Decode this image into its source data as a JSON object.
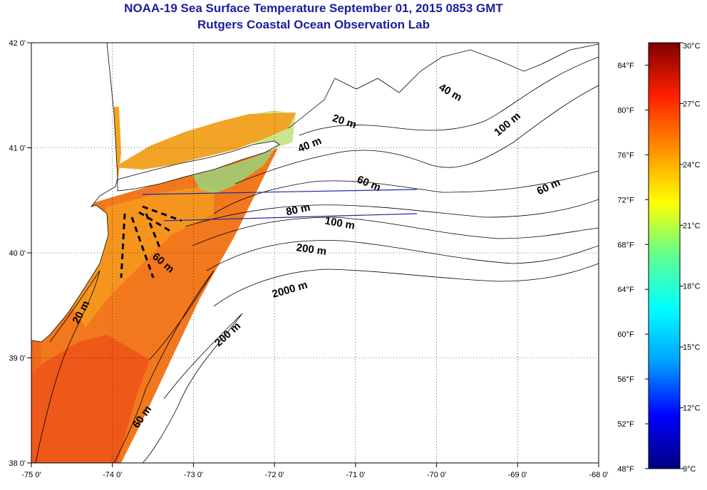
{
  "title": "NOAA-19 Sea Surface Temperature September 01, 2015 0853 GMT",
  "subtitle": "Rutgers Coastal Ocean Observation Lab",
  "map": {
    "lon_range": [
      -75,
      -68
    ],
    "lat_range": [
      38,
      42
    ],
    "lon_ticks": [
      {
        "value": -75,
        "label": "-75 0'"
      },
      {
        "value": -74,
        "label": "-74 0'"
      },
      {
        "value": -73,
        "label": "-73 0'"
      },
      {
        "value": -72,
        "label": "-72 0'"
      },
      {
        "value": -71,
        "label": "-71 0'"
      },
      {
        "value": -70,
        "label": "-70 0'"
      },
      {
        "value": -69,
        "label": "-69 0'"
      },
      {
        "value": -68,
        "label": "-68 0'"
      }
    ],
    "lat_ticks": [
      {
        "value": 38,
        "label": "38 0'"
      },
      {
        "value": 39,
        "label": "39 0'"
      },
      {
        "value": 40,
        "label": "40 0'"
      },
      {
        "value": 41,
        "label": "41 0'"
      },
      {
        "value": 42,
        "label": "42 0'"
      }
    ],
    "grid": "dotted",
    "depth_contours": [
      {
        "label": "20 m",
        "lon": -74.35,
        "lat": 39.42,
        "rotate": -62
      },
      {
        "label": "60 m",
        "lon": -73.6,
        "lat": 38.42,
        "rotate": -55
      },
      {
        "label": "60 m",
        "lon": -73.4,
        "lat": 39.88,
        "rotate": 40
      },
      {
        "label": "200 m",
        "lon": -72.55,
        "lat": 39.2,
        "rotate": -42
      },
      {
        "label": "2000 m",
        "lon": -71.8,
        "lat": 39.62,
        "rotate": -16
      },
      {
        "label": "200 m",
        "lon": -71.55,
        "lat": 40.0,
        "rotate": 8
      },
      {
        "label": "100 m",
        "lon": -71.2,
        "lat": 40.25,
        "rotate": 10
      },
      {
        "label": "80 m",
        "lon": -71.7,
        "lat": 40.38,
        "rotate": -12
      },
      {
        "label": "60 m",
        "lon": -70.85,
        "lat": 40.63,
        "rotate": 22
      },
      {
        "label": "40 m",
        "lon": -71.55,
        "lat": 41.0,
        "rotate": -22
      },
      {
        "label": "20 m",
        "lon": -71.15,
        "lat": 41.22,
        "rotate": 18
      },
      {
        "label": "40 m",
        "lon": -69.85,
        "lat": 41.5,
        "rotate": 30
      },
      {
        "label": "100 m",
        "lon": -69.1,
        "lat": 41.2,
        "rotate": -40
      },
      {
        "label": "60 m",
        "lon": -68.6,
        "lat": 40.6,
        "rotate": -25
      }
    ]
  },
  "colorbar": {
    "celsius_range": [
      9,
      30
    ],
    "fahrenheit_range": [
      48,
      86
    ],
    "celsius_ticks": [
      {
        "value": 30,
        "label": "30°C"
      },
      {
        "value": 27,
        "label": "27°C"
      },
      {
        "value": 24,
        "label": "24°C"
      },
      {
        "value": 21,
        "label": "21°C"
      },
      {
        "value": 18,
        "label": "18°C"
      },
      {
        "value": 15,
        "label": "15°C"
      },
      {
        "value": 12,
        "label": "12°C"
      },
      {
        "value": 9,
        "label": "9°C"
      }
    ],
    "fahrenheit_ticks": [
      {
        "value": 84,
        "label": "84°F"
      },
      {
        "value": 80,
        "label": "80°F"
      },
      {
        "value": 76,
        "label": "76°F"
      },
      {
        "value": 72,
        "label": "72°F"
      },
      {
        "value": 68,
        "label": "68°F"
      },
      {
        "value": 64,
        "label": "64°F"
      },
      {
        "value": 60,
        "label": "60°F"
      },
      {
        "value": 56,
        "label": "56°F"
      },
      {
        "value": 52,
        "label": "52°F"
      },
      {
        "value": 48,
        "label": "48°F"
      }
    ],
    "colors": [
      "#000080",
      "#0000ff",
      "#00a0ff",
      "#00ffff",
      "#60ff90",
      "#ffff00",
      "#ff9000",
      "#ff2000",
      "#800000"
    ]
  },
  "colors": {
    "title": "#1c1c9c",
    "sst_warm": "#f06a1e",
    "sst_mid": "#f5a21e",
    "sst_cool": "#9cd27a",
    "transect": "#1a2aa8"
  }
}
